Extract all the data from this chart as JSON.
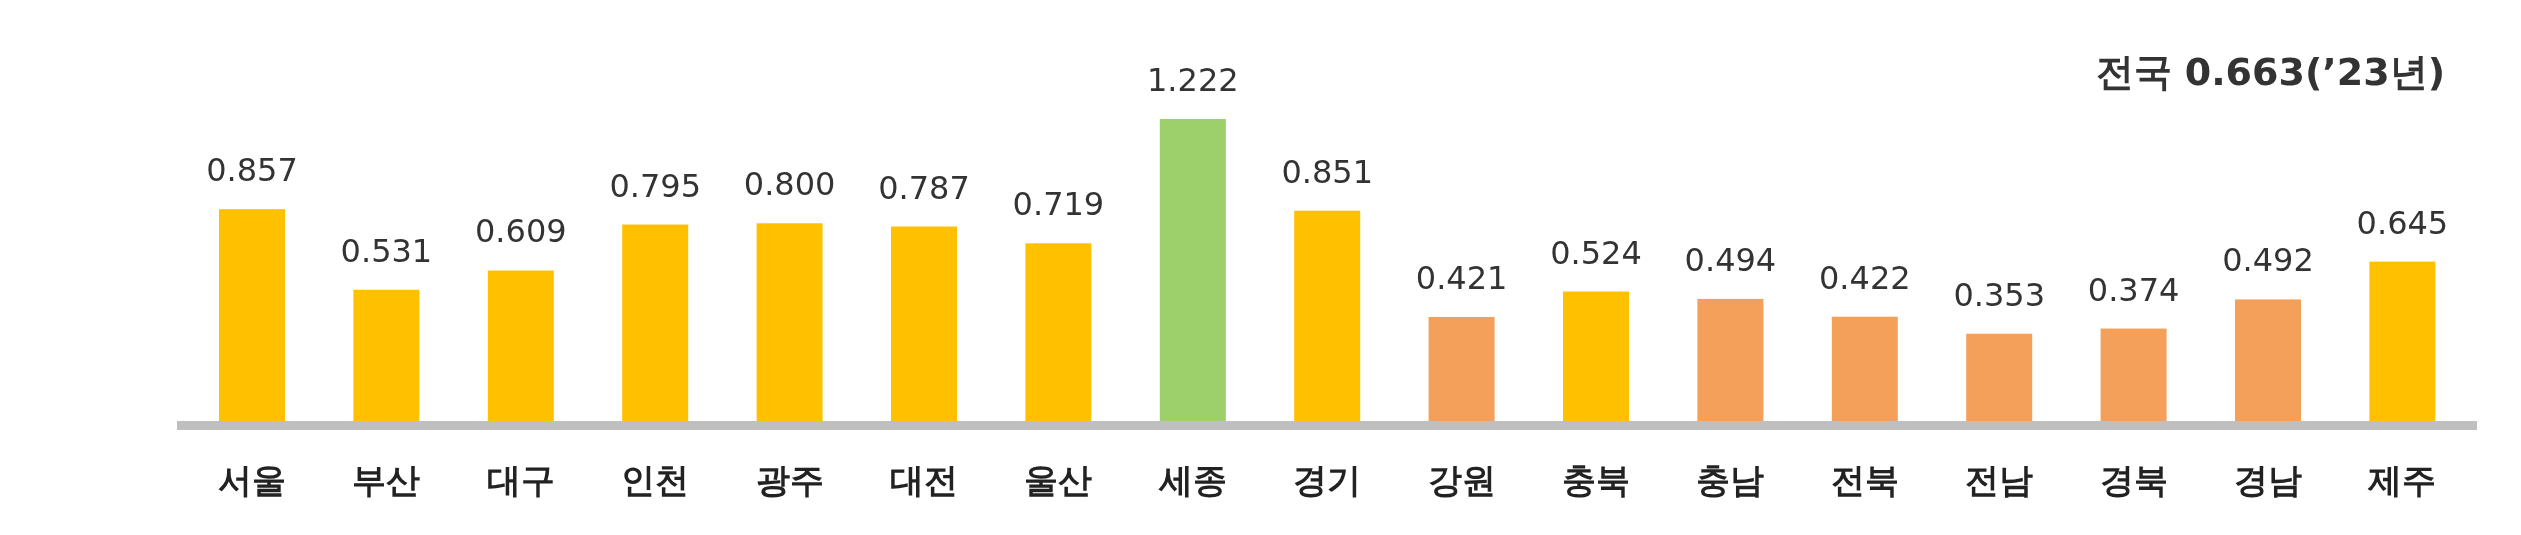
{
  "chart_data": {
    "type": "bar",
    "title": "전국 0.663(’23년)",
    "categories": [
      "서울",
      "부산",
      "대구",
      "인천",
      "광주",
      "대전",
      "울산",
      "세종",
      "경기",
      "강원",
      "충북",
      "충남",
      "전북",
      "전남",
      "경북",
      "경남",
      "제주"
    ],
    "values": [
      0.857,
      0.531,
      0.609,
      0.795,
      0.8,
      0.787,
      0.719,
      1.222,
      0.851,
      0.421,
      0.524,
      0.494,
      0.422,
      0.353,
      0.374,
      0.492,
      0.645
    ],
    "colors": [
      "#ffc000",
      "#ffc000",
      "#ffc000",
      "#ffc000",
      "#ffc000",
      "#ffc000",
      "#ffc000",
      "#9dcf6b",
      "#ffc000",
      "#f4a05a",
      "#ffc000",
      "#f4a05a",
      "#f4a05a",
      "#f4a05a",
      "#f4a05a",
      "#f4a05a",
      "#ffc000"
    ],
    "value_labels": [
      "0.857",
      "0.531",
      "0.609",
      "0.795",
      "0.800",
      "0.787",
      "0.719",
      "1.222",
      "0.851",
      "0.421",
      "0.524",
      "0.494",
      "0.422",
      "0.353",
      "0.374",
      "0.492",
      "0.645"
    ]
  }
}
